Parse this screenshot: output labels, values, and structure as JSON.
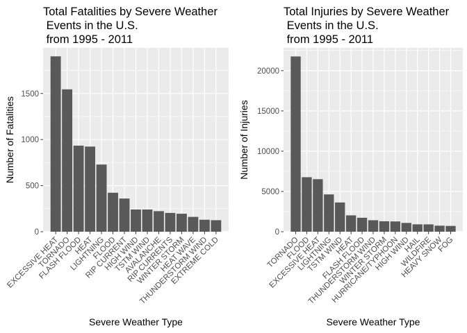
{
  "colors": {
    "panel_background": "#ebebeb",
    "grid_major": "#ffffff",
    "bar_fill": "#595959",
    "tick_text": "#4d4d4d",
    "axis_tick": "#333333"
  },
  "chart_data": [
    {
      "type": "bar",
      "title": [
        "Total Fatalities by Severe Weather",
        " Events in the U.S.",
        " from 1995 - 2011"
      ],
      "xlabel": "Severe Weather Type",
      "ylabel": "Number of Fatalities",
      "ylim": [
        0,
        1995
      ],
      "yticks": [
        0,
        500,
        1000,
        1500
      ],
      "grid": true,
      "legend": "none",
      "categories": [
        "EXCESSIVE HEAT",
        "TORNADO",
        "FLASH FLOOD",
        "HEAT",
        "LIGHTNING",
        "FLOOD",
        "RIP CURRENT",
        "HIGH WIND",
        "TSTM WIND",
        "AVALANCHE",
        "RIP CURRENTS",
        "WINTER STORM",
        "HEAT WAVE",
        "THUNDERSTORM WIND",
        "EXTREME COLD"
      ],
      "values": [
        1903,
        1545,
        934,
        924,
        729,
        423,
        360,
        241,
        241,
        223,
        204,
        195,
        161,
        130,
        125
      ]
    },
    {
      "type": "bar",
      "title": [
        "Total Injuries by Severe Weather",
        " Events in the U.S.",
        " from 1995 - 2011"
      ],
      "xlabel": "Severe Weather Type",
      "ylabel": "Number of Injuries",
      "ylim": [
        0,
        22830
      ],
      "yticks": [
        0,
        5000,
        10000,
        15000,
        20000
      ],
      "grid": true,
      "legend": "none",
      "categories": [
        "TORNADO",
        "FLOOD",
        "EXCESSIVE HEAT",
        "LIGHTNING",
        "TSTM WIND",
        "HEAT",
        "FLASH FLOOD",
        "THUNDERSTORM WIND",
        "WINTER STORM",
        "HURRICANE/TYPHOON",
        "HIGH WIND",
        "HAIL",
        "WILDFIRE",
        "HEAVY SNOW",
        "FOG"
      ],
      "values": [
        21765,
        6770,
        6525,
        4631,
        3630,
        2030,
        1734,
        1426,
        1298,
        1275,
        1093,
        916,
        911,
        751,
        718
      ]
    }
  ]
}
